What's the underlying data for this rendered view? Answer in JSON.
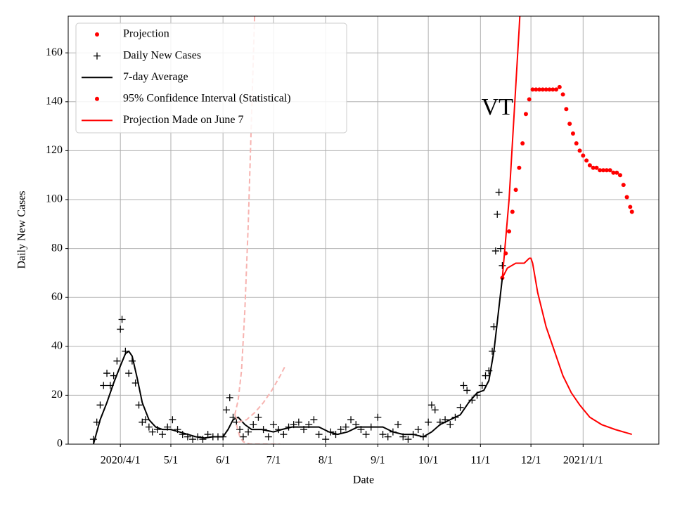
{
  "chart_data": {
    "type": "line",
    "xlabel": "Date",
    "ylabel": "Daily New Cases",
    "xlim": [
      "2020-03-01",
      "2021-02-15"
    ],
    "ylim": [
      0,
      175
    ],
    "yticks": [
      0,
      20,
      40,
      60,
      80,
      100,
      120,
      140,
      160
    ],
    "xticks": [
      {
        "value": "2020-04-01",
        "label": "2020/4/1"
      },
      {
        "value": "2020-05-01",
        "label": "5/1"
      },
      {
        "value": "2020-06-01",
        "label": "6/1"
      },
      {
        "value": "2020-07-01",
        "label": "7/1"
      },
      {
        "value": "2020-08-01",
        "label": "8/1"
      },
      {
        "value": "2020-09-01",
        "label": "9/1"
      },
      {
        "value": "2020-10-01",
        "label": "10/1"
      },
      {
        "value": "2020-11-01",
        "label": "11/1"
      },
      {
        "value": "2020-12-01",
        "label": "12/1"
      },
      {
        "value": "2021-01-01",
        "label": "2021/1/1"
      }
    ],
    "grid": true,
    "legend": "upper left",
    "annotations": [
      {
        "text": "VT",
        "x": "2020-11-11",
        "y": 137
      }
    ],
    "series": [
      {
        "name": "Projection",
        "color": "#ff0000",
        "style": "dot",
        "legend_marker": "dot",
        "legend_color": "#ff0000",
        "x": [
          "2020-11-14",
          "2020-11-16",
          "2020-11-18",
          "2020-11-20",
          "2020-11-22",
          "2020-11-24",
          "2020-11-26",
          "2020-11-28",
          "2020-11-30",
          "2020-12-02",
          "2020-12-04",
          "2020-12-06",
          "2020-12-08",
          "2020-12-10",
          "2020-12-12",
          "2020-12-14",
          "2020-12-16",
          "2020-12-18",
          "2020-12-20",
          "2020-12-22",
          "2020-12-24",
          "2020-12-26",
          "2020-12-28",
          "2020-12-30",
          "2021-01-01",
          "2021-01-03",
          "2021-01-05",
          "2021-01-07",
          "2021-01-09",
          "2021-01-11",
          "2021-01-13",
          "2021-01-15",
          "2021-01-17",
          "2021-01-19",
          "2021-01-21",
          "2021-01-23",
          "2021-01-25",
          "2021-01-27",
          "2021-01-29",
          "2021-01-30"
        ],
        "values": [
          68,
          78,
          87,
          95,
          104,
          113,
          123,
          135,
          141,
          145,
          145,
          145,
          145,
          145,
          145,
          145,
          145,
          146,
          143,
          137,
          131,
          127,
          123,
          120,
          118,
          116,
          114,
          113,
          113,
          112,
          112,
          112,
          112,
          111,
          111,
          110,
          106,
          101,
          97,
          95
        ]
      },
      {
        "name": "Daily New Cases",
        "color": "#000000",
        "style": "plus",
        "legend_marker": "plus",
        "legend_color": "#000000",
        "x": [
          "2020-03-16",
          "2020-03-18",
          "2020-03-20",
          "2020-03-22",
          "2020-03-24",
          "2020-03-26",
          "2020-03-28",
          "2020-03-30",
          "2020-04-01",
          "2020-04-02",
          "2020-04-04",
          "2020-04-06",
          "2020-04-08",
          "2020-04-10",
          "2020-04-12",
          "2020-04-14",
          "2020-04-16",
          "2020-04-18",
          "2020-04-20",
          "2020-04-23",
          "2020-04-26",
          "2020-04-29",
          "2020-05-02",
          "2020-05-05",
          "2020-05-08",
          "2020-05-11",
          "2020-05-14",
          "2020-05-17",
          "2020-05-20",
          "2020-05-23",
          "2020-05-26",
          "2020-05-29",
          "2020-06-01",
          "2020-06-03",
          "2020-06-05",
          "2020-06-07",
          "2020-06-09",
          "2020-06-11",
          "2020-06-13",
          "2020-06-16",
          "2020-06-19",
          "2020-06-22",
          "2020-06-25",
          "2020-06-28",
          "2020-07-01",
          "2020-07-04",
          "2020-07-07",
          "2020-07-10",
          "2020-07-13",
          "2020-07-16",
          "2020-07-19",
          "2020-07-22",
          "2020-07-25",
          "2020-07-28",
          "2020-08-01",
          "2020-08-04",
          "2020-08-07",
          "2020-08-10",
          "2020-08-13",
          "2020-08-16",
          "2020-08-19",
          "2020-08-22",
          "2020-08-25",
          "2020-08-28",
          "2020-09-01",
          "2020-09-04",
          "2020-09-07",
          "2020-09-10",
          "2020-09-13",
          "2020-09-16",
          "2020-09-19",
          "2020-09-22",
          "2020-09-25",
          "2020-09-28",
          "2020-10-01",
          "2020-10-03",
          "2020-10-05",
          "2020-10-08",
          "2020-10-11",
          "2020-10-14",
          "2020-10-17",
          "2020-10-20",
          "2020-10-22",
          "2020-10-24",
          "2020-10-27",
          "2020-10-30",
          "2020-11-02",
          "2020-11-04",
          "2020-11-06",
          "2020-11-08",
          "2020-11-09",
          "2020-11-10",
          "2020-11-11",
          "2020-11-12",
          "2020-11-13",
          "2020-11-14"
        ],
        "values": [
          2,
          9,
          16,
          24,
          29,
          24,
          28,
          34,
          47,
          51,
          38,
          29,
          34,
          25,
          16,
          9,
          10,
          7,
          5,
          6,
          4,
          7,
          10,
          6,
          4,
          3,
          2,
          3,
          2,
          4,
          3,
          3,
          3,
          14,
          19,
          11,
          9,
          6,
          3,
          5,
          8,
          11,
          6,
          3,
          8,
          6,
          4,
          7,
          8,
          9,
          6,
          8,
          10,
          4,
          2,
          5,
          4,
          6,
          7,
          10,
          8,
          6,
          4,
          7,
          11,
          4,
          3,
          5,
          8,
          3,
          2,
          4,
          6,
          3,
          9,
          16,
          14,
          9,
          10,
          8,
          11,
          15,
          24,
          22,
          18,
          20,
          24,
          28,
          30,
          38,
          48,
          79,
          94,
          103,
          80,
          73
        ]
      },
      {
        "name": "7-day Average",
        "color": "#000000",
        "style": "line",
        "legend_marker": "line",
        "legend_color": "#000000",
        "x": [
          "2020-03-16",
          "2020-03-20",
          "2020-03-24",
          "2020-03-28",
          "2020-04-01",
          "2020-04-04",
          "2020-04-06",
          "2020-04-08",
          "2020-04-11",
          "2020-04-14",
          "2020-04-18",
          "2020-04-22",
          "2020-04-26",
          "2020-05-01",
          "2020-05-06",
          "2020-05-11",
          "2020-05-16",
          "2020-05-21",
          "2020-05-26",
          "2020-06-01",
          "2020-06-04",
          "2020-06-07",
          "2020-06-10",
          "2020-06-14",
          "2020-06-18",
          "2020-06-24",
          "2020-07-01",
          "2020-07-06",
          "2020-07-12",
          "2020-07-20",
          "2020-07-28",
          "2020-08-03",
          "2020-08-08",
          "2020-08-14",
          "2020-08-20",
          "2020-08-28",
          "2020-09-04",
          "2020-09-10",
          "2020-09-16",
          "2020-09-22",
          "2020-09-28",
          "2020-10-03",
          "2020-10-08",
          "2020-10-14",
          "2020-10-20",
          "2020-10-25",
          "2020-10-30",
          "2020-11-03",
          "2020-11-06",
          "2020-11-09",
          "2020-11-11",
          "2020-11-13",
          "2020-11-14"
        ],
        "values": [
          0,
          10,
          17,
          25,
          32,
          37,
          38,
          36,
          27,
          17,
          10,
          7,
          6,
          6,
          5,
          4,
          3,
          2.5,
          3,
          3,
          6,
          10,
          11,
          8,
          6,
          6,
          5,
          6,
          7,
          7,
          7,
          5,
          4,
          5,
          7,
          7,
          7,
          5,
          4,
          4,
          3,
          5,
          8,
          10,
          12,
          17,
          21,
          22,
          26,
          38,
          50,
          62,
          68
        ]
      },
      {
        "name": "95% Confidence Interval (Statistical)",
        "color": "#ff0000",
        "style": "line",
        "legend_marker": "dot",
        "legend_color": "#ff0000",
        "x": [
          "2020-11-14",
          "2020-11-18",
          "2020-11-21",
          "2020-11-24",
          "2020-11-26"
        ],
        "values": [
          68,
          100,
          135,
          170,
          195
        ]
      },
      {
        "color": "#ff0000",
        "style": "line",
        "x": [
          "2020-11-14",
          "2020-11-17",
          "2020-11-22",
          "2020-11-27",
          "2020-11-30",
          "2020-12-01",
          "2020-12-02",
          "2020-12-05",
          "2020-12-10",
          "2020-12-15",
          "2020-12-20",
          "2020-12-25",
          "2020-12-30",
          "2021-01-05",
          "2021-01-12",
          "2021-01-20",
          "2021-01-30"
        ],
        "values": [
          68,
          72,
          74,
          74,
          76,
          76,
          74,
          62,
          48,
          38,
          28,
          21,
          16,
          11,
          8,
          6,
          4
        ]
      },
      {
        "name": "Projection Made on June 7",
        "color": "#f7b3b0",
        "style": "dashed",
        "legend_marker": "line",
        "legend_color": "#ff0000",
        "x": [
          "2020-06-08",
          "2020-06-10",
          "2020-06-15",
          "2020-06-20",
          "2020-06-25",
          "2020-06-30",
          "2020-07-05",
          "2020-07-08"
        ],
        "values": [
          12,
          9,
          10,
          13,
          17,
          22,
          28,
          32
        ]
      },
      {
        "color": "#f7b3b0",
        "style": "dashed",
        "x": [
          "2020-06-08",
          "2020-06-10",
          "2020-06-12",
          "2020-06-14",
          "2020-06-16",
          "2020-06-18",
          "2020-06-20"
        ],
        "values": [
          12,
          18,
          30,
          55,
          90,
          135,
          180
        ]
      },
      {
        "color": "#f7b3b0",
        "style": "dashed",
        "x": [
          "2020-06-09",
          "2020-06-11",
          "2020-06-13",
          "2020-06-17",
          "2020-07-05"
        ],
        "values": [
          8,
          3,
          1,
          0,
          0
        ]
      }
    ]
  }
}
